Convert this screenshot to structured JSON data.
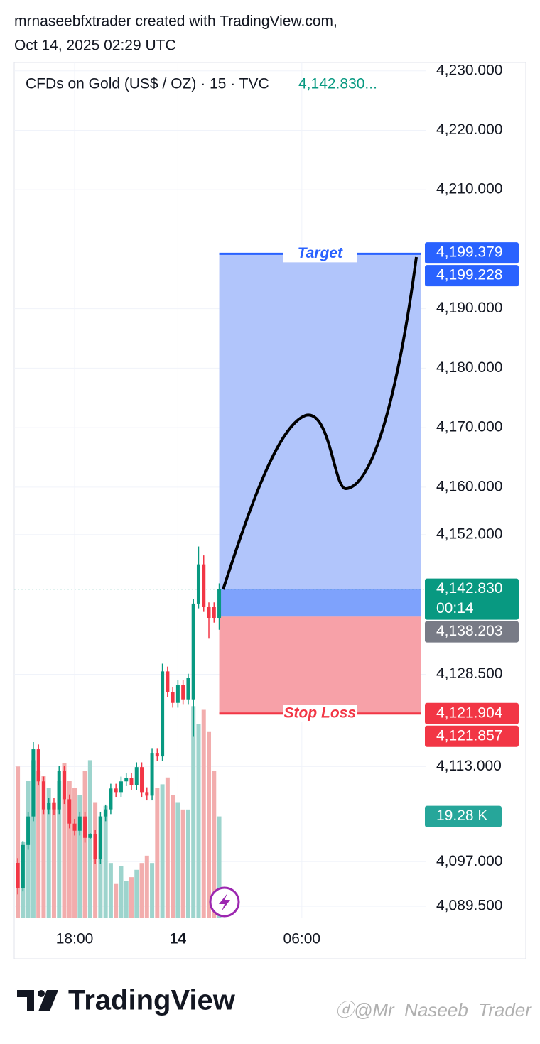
{
  "header": {
    "author_line": "mrnaseebfxtrader created with TradingView.com,",
    "date_line": "Oct 14, 2025 02:29 UTC"
  },
  "footer": {
    "logo": "TradingView",
    "watermark": "@Mr_Naseeb_Trader"
  },
  "chart_data": {
    "type": "candlestick",
    "title": "CFDs on Gold (US$ / OZ) · 15 · TVC",
    "last_price_label": "4,142.830...",
    "x": [
      -11,
      -10,
      -9,
      -8,
      -7,
      -6,
      -5,
      -4,
      -3,
      -2,
      -1,
      0,
      1,
      2,
      3,
      4,
      5,
      6,
      7,
      8,
      9,
      10,
      11,
      12,
      13,
      14,
      15,
      16,
      17,
      18,
      19,
      20,
      21,
      22,
      23,
      24,
      25,
      26,
      27,
      28
    ],
    "open": [
      4096.8,
      4092.6,
      4099.8,
      4104.6,
      4115.9,
      4110.5,
      4105.8,
      4106.9,
      4105.8,
      4112.3,
      4107.5,
      4103.4,
      4102.2,
      4104.6,
      4101.0,
      4101.6,
      4097.4,
      4104.6,
      4105.8,
      4109.3,
      4108.7,
      4110.5,
      4111.1,
      4109.9,
      4112.9,
      4108.7,
      4108.1,
      4115.3,
      4114.7,
      4129.0,
      4125.5,
      4123.7,
      4126.7,
      4124.3,
      4124.3,
      4140.4,
      4147.0,
      4139.8,
      4139.8,
      4138.0
    ],
    "high": [
      4097.6,
      4100.5,
      4105.3,
      4117.1,
      4116.7,
      4111.3,
      4107.7,
      4107.7,
      4113.1,
      4113.1,
      4108.3,
      4104.2,
      4105.4,
      4105.4,
      4101.8,
      4102.4,
      4105.4,
      4106.6,
      4110.1,
      4110.1,
      4111.3,
      4111.9,
      4111.9,
      4113.7,
      4113.7,
      4109.5,
      4116.1,
      4116.1,
      4130.3,
      4129.8,
      4126.3,
      4127.5,
      4127.5,
      4128.6,
      4141.2,
      4150.0,
      4148.5,
      4140.6,
      4140.6,
      4143.8
    ],
    "low": [
      4091.5,
      4092.0,
      4099.0,
      4103.8,
      4109.8,
      4105.0,
      4105.0,
      4104.9,
      4105.0,
      4106.7,
      4102.6,
      4101.4,
      4101.4,
      4100.2,
      4100.8,
      4096.6,
      4096.6,
      4103.8,
      4105.0,
      4107.9,
      4107.9,
      4109.7,
      4109.1,
      4109.1,
      4107.9,
      4107.3,
      4107.3,
      4113.9,
      4113.9,
      4124.7,
      4122.9,
      4122.9,
      4123.5,
      4123.5,
      4118.0,
      4139.6,
      4139.0,
      4134.5,
      4137.2,
      4136.0
    ],
    "close": [
      4092.6,
      4099.8,
      4104.6,
      4115.9,
      4110.5,
      4105.8,
      4106.9,
      4105.8,
      4112.3,
      4107.5,
      4103.4,
      4102.2,
      4104.6,
      4101.0,
      4101.6,
      4097.4,
      4104.6,
      4105.8,
      4109.3,
      4108.7,
      4110.5,
      4111.1,
      4109.9,
      4112.9,
      4108.7,
      4108.1,
      4115.3,
      4114.7,
      4129.0,
      4125.5,
      4123.7,
      4126.7,
      4124.3,
      4127.9,
      4140.4,
      4147.0,
      4139.8,
      4138.0,
      4138.0,
      4142.83
    ],
    "volume": [
      28.8,
      14.5,
      26,
      30,
      28,
      27,
      24.7,
      22,
      26,
      29.4,
      26,
      24.7,
      23.3,
      28,
      30,
      22,
      19.3,
      21.3,
      10.4,
      6.4,
      9.8,
      7,
      7.7,
      9.1,
      10.4,
      11.8,
      10.4,
      24.7,
      25.4,
      26.7,
      23.3,
      22,
      20.6,
      20.6,
      40.3,
      36.9,
      39.6,
      35.5,
      28.0,
      19.28
    ],
    "last_volume_label": "19.28 K",
    "volume_lim": [
      0,
      163
    ],
    "up_color": "#089981",
    "down_color": "#f23645",
    "volume_up_color": "#9dd4cd",
    "volume_down_color": "#f2adad",
    "xlim": [
      -11.7,
      68.1
    ],
    "xticks": [
      {
        "value": 0,
        "label": "18:00"
      },
      {
        "value": 20,
        "label": "14"
      },
      {
        "value": 44,
        "label": "06:00"
      }
    ],
    "ylim": [
      4087.6,
      4231.4
    ],
    "yticks": [
      {
        "value": 4230,
        "label": "4,230.000"
      },
      {
        "value": 4220,
        "label": "4,220.000"
      },
      {
        "value": 4210,
        "label": "4,210.000"
      },
      {
        "value": 4190,
        "label": "4,190.000"
      },
      {
        "value": 4180,
        "label": "4,180.000"
      },
      {
        "value": 4170,
        "label": "4,170.000"
      },
      {
        "value": 4160,
        "label": "4,160.000"
      },
      {
        "value": 4152,
        "label": "4,152.000"
      },
      {
        "value": 4128.5,
        "label": "4,128.500"
      },
      {
        "value": 4113,
        "label": "4,113.000"
      },
      {
        "value": 4097,
        "label": "4,097.000"
      },
      {
        "value": 4089.5,
        "label": "4,089.500"
      }
    ],
    "grid": true,
    "position": {
      "x_start": 28,
      "x_end": 67,
      "entry": 4138.203,
      "target": 4199.228,
      "stop": 4121.904,
      "target_label": "Target",
      "stop_label": "Stop Loss",
      "profit_color": "#b1c5fb",
      "loss_color": "#f7a1a8",
      "open_color": "#7ea2fc"
    },
    "price_labels": [
      {
        "value": 4199.379,
        "label": "4,199.379",
        "color": "#2962ff"
      },
      {
        "value": 4199.228,
        "label": "4,199.228",
        "color": "#2962ff"
      },
      {
        "value": 4142.83,
        "label": "4,142.830",
        "sub": "00:14",
        "color": "#089981"
      },
      {
        "value": 4138.203,
        "label": "4,138.203",
        "color": "#787b86"
      },
      {
        "value": 4121.904,
        "label": "4,121.904",
        "color": "#f23645"
      },
      {
        "value": 4121.857,
        "label": "4,121.857",
        "color": "#f23645"
      }
    ]
  }
}
